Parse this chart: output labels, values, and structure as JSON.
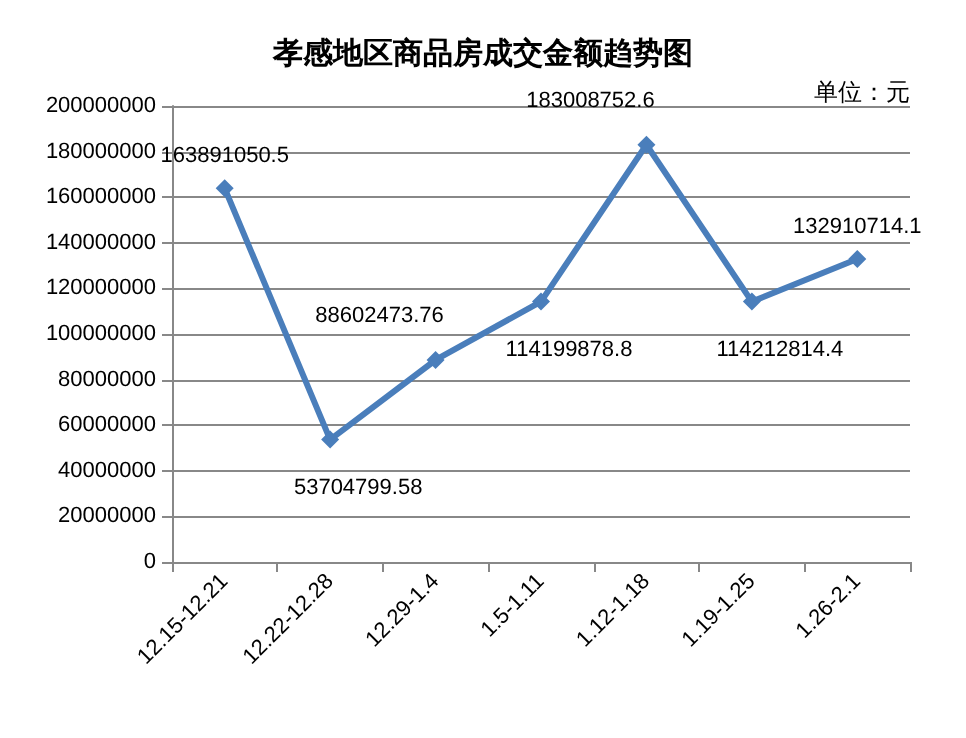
{
  "chart_data": {
    "type": "line",
    "title": "孝感地区商品房成交金额趋势图",
    "annotations": [
      "单位：元"
    ],
    "categories": [
      "12.15-12.21",
      "12.22-12.28",
      "12.29-1.4",
      "1.5-1.11",
      "1.12-1.18",
      "1.19-1.25",
      "1.26-2.1"
    ],
    "series": [
      {
        "color": "#4a7ebb",
        "values": [
          163891050.5,
          53704799.58,
          88602473.76,
          114199878.8,
          183008752.6,
          114212814.4,
          132910714.1
        ]
      }
    ],
    "ylim": [
      0,
      200000000
    ],
    "yticks": [
      0,
      20000000,
      40000000,
      60000000,
      80000000,
      100000000,
      120000000,
      140000000,
      160000000,
      180000000,
      200000000
    ],
    "grid": "y",
    "marker": "diamond",
    "line_style": "solid",
    "data_labels": true
  }
}
